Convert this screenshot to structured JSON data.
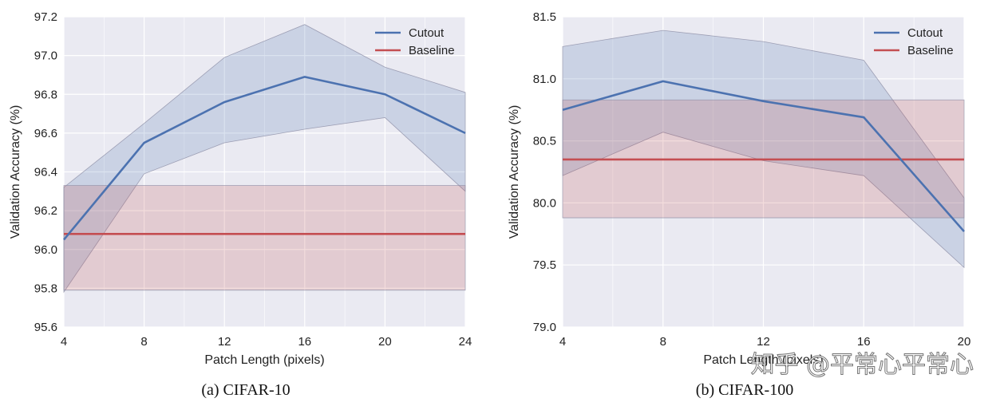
{
  "chart_data": [
    {
      "type": "line",
      "caption": "(a) CIFAR-10",
      "xlabel": "Patch Length (pixels)",
      "ylabel": "Validation Accuracy (%)",
      "x": [
        4,
        8,
        12,
        16,
        20,
        24
      ],
      "xticks": [
        "4",
        "8",
        "12",
        "16",
        "20",
        "24"
      ],
      "yticks": [
        "95.6",
        "95.8",
        "96.0",
        "96.2",
        "96.4",
        "96.6",
        "96.8",
        "97.0",
        "97.2"
      ],
      "xlim": [
        4,
        24
      ],
      "ylim": [
        95.6,
        97.2
      ],
      "series": [
        {
          "name": "Cutout",
          "color": "#4c72b0",
          "values": [
            96.05,
            96.55,
            96.76,
            96.89,
            96.8,
            96.6
          ],
          "band_upper": [
            96.32,
            96.65,
            96.99,
            97.16,
            96.94,
            96.81
          ],
          "band_lower": [
            95.78,
            96.39,
            96.55,
            96.62,
            96.68,
            96.3
          ]
        },
        {
          "name": "Baseline",
          "color": "#c44e52",
          "values": [
            96.08,
            96.08,
            96.08,
            96.08,
            96.08,
            96.08
          ],
          "band_upper": [
            96.33,
            96.33,
            96.33,
            96.33,
            96.33,
            96.33
          ],
          "band_lower": [
            95.79,
            95.79,
            95.79,
            95.79,
            95.79,
            95.79
          ]
        }
      ],
      "legend": [
        "Cutout",
        "Baseline"
      ],
      "legend_position": "top-right"
    },
    {
      "type": "line",
      "caption": "(b) CIFAR-100",
      "xlabel": "Patch Length (pixels)",
      "ylabel": "Validation Accuracy (%)",
      "x": [
        4,
        8,
        12,
        16,
        20
      ],
      "xticks": [
        "4",
        "8",
        "12",
        "16",
        "20"
      ],
      "yticks": [
        "79.0",
        "79.5",
        "80.0",
        "80.5",
        "81.0",
        "81.5"
      ],
      "xlim": [
        4,
        20
      ],
      "ylim": [
        79.0,
        81.5
      ],
      "series": [
        {
          "name": "Cutout",
          "color": "#4c72b0",
          "values": [
            80.75,
            80.98,
            80.82,
            80.69,
            79.77
          ],
          "band_upper": [
            81.26,
            81.39,
            81.3,
            81.15,
            80.04
          ],
          "band_lower": [
            80.22,
            80.57,
            80.34,
            80.22,
            79.48
          ]
        },
        {
          "name": "Baseline",
          "color": "#c44e52",
          "values": [
            80.35,
            80.35,
            80.35,
            80.35,
            80.35
          ],
          "band_upper": [
            80.83,
            80.83,
            80.83,
            80.83,
            80.83
          ],
          "band_lower": [
            79.88,
            79.88,
            79.88,
            79.88,
            79.88
          ]
        }
      ],
      "legend": [
        "Cutout",
        "Baseline"
      ],
      "legend_position": "top-right"
    }
  ],
  "watermark": "知乎 @平常心平常心"
}
